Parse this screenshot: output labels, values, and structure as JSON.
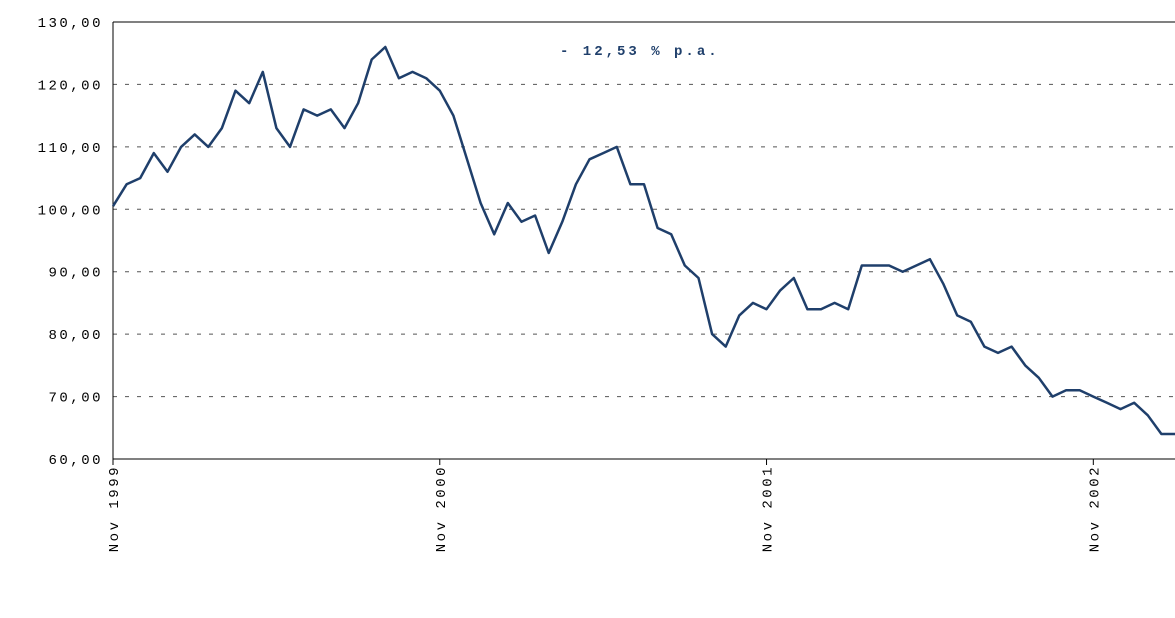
{
  "chart_data": {
    "type": "line",
    "annotation": "- 12,53 % p.a.",
    "categories": [
      "Nov 1999",
      null,
      null,
      null,
      null,
      null,
      null,
      null,
      null,
      null,
      null,
      null,
      null,
      null,
      null,
      null,
      null,
      null,
      null,
      null,
      null,
      null,
      null,
      null,
      "Nov 2000",
      null,
      null,
      null,
      null,
      null,
      null,
      null,
      null,
      null,
      null,
      null,
      null,
      null,
      null,
      null,
      null,
      null,
      null,
      null,
      null,
      null,
      null,
      null,
      "Nov 2001",
      null,
      null,
      null,
      null,
      null,
      null,
      null,
      null,
      null,
      null,
      null,
      null,
      null,
      null,
      null,
      null,
      null,
      null,
      null,
      null,
      null,
      null,
      null,
      "Nov 2002",
      null,
      null,
      null,
      null,
      null,
      null
    ],
    "series": [
      {
        "color": "#1f3f6b",
        "values": [
          100.5,
          104,
          105,
          109,
          106,
          110,
          112,
          110,
          113,
          119,
          117,
          122,
          113,
          110,
          116,
          115,
          116,
          113,
          117,
          124,
          126,
          121,
          122,
          121,
          119,
          115,
          108,
          101,
          96,
          101,
          98,
          99,
          93,
          98,
          104,
          108,
          109,
          110,
          104,
          104,
          97,
          96,
          91,
          89,
          80,
          78,
          83,
          85,
          84,
          87,
          89,
          84,
          84,
          85,
          84,
          91,
          91,
          91,
          90,
          91,
          92,
          88,
          83,
          82,
          78,
          77,
          78,
          75,
          73,
          70,
          71,
          71,
          70,
          69,
          68,
          69,
          67,
          64,
          64
        ]
      }
    ],
    "ylim": [
      60,
      130
    ],
    "yticks": [
      {
        "value": 60,
        "label": "60,00"
      },
      {
        "value": 70,
        "label": "70,00"
      },
      {
        "value": 80,
        "label": "80,00"
      },
      {
        "value": 90,
        "label": "90,00"
      },
      {
        "value": 100,
        "label": "100,00"
      },
      {
        "value": 110,
        "label": "110,00"
      },
      {
        "value": 120,
        "label": "120,00"
      },
      {
        "value": 130,
        "label": "130,00"
      }
    ],
    "grid": true
  }
}
